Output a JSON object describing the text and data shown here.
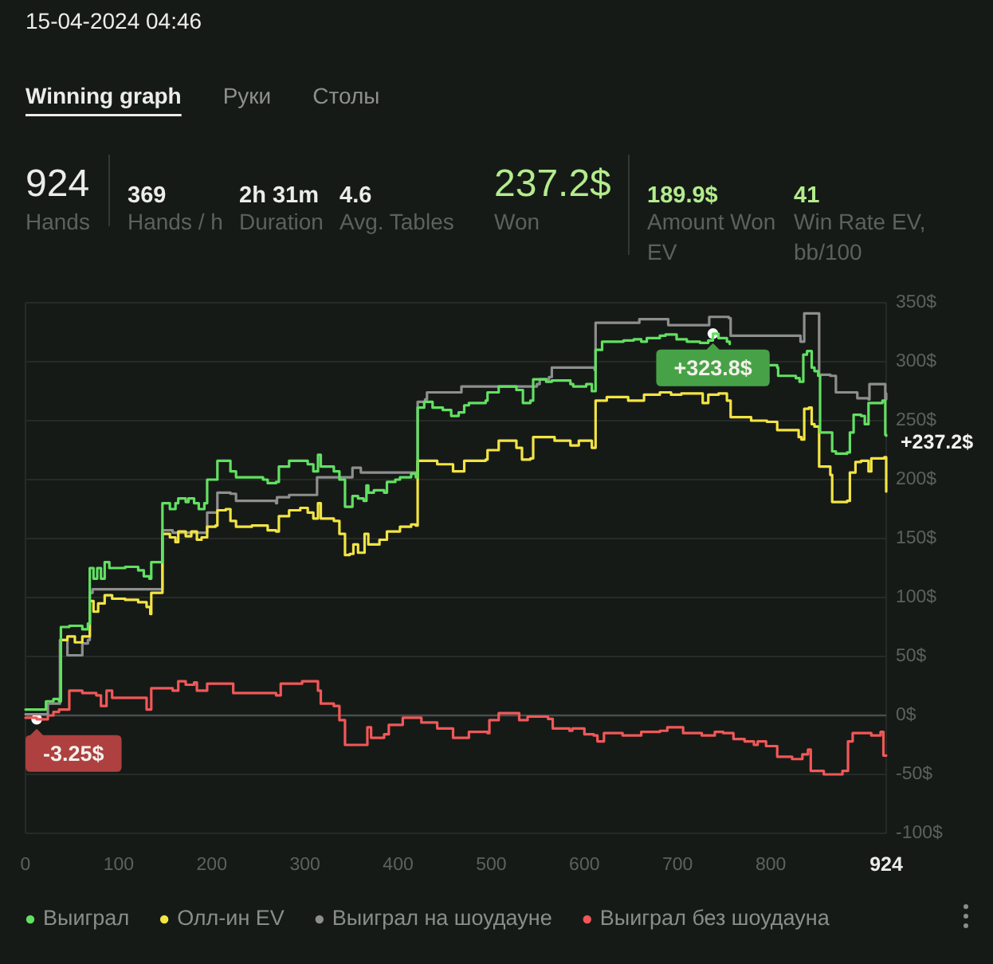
{
  "chart_data": {
    "type": "step",
    "title": "15-04-2024 04:46",
    "annotations": [
      "Winning graph",
      "Руки",
      "Столы",
      "924",
      "Hands",
      "369",
      "Hands / h",
      "2h 31m",
      "Duration",
      "4.6",
      "Avg. Tables",
      "237.2$",
      "Won",
      "189.9$",
      "Amount Won EV",
      "41",
      "Win Rate EV, bb/100",
      {
        "text": "+323.8$",
        "x": 738,
        "y": 323.8
      },
      {
        "text": "-3.25$",
        "x": 12,
        "y": -3.25
      },
      {
        "text": "+237.2$",
        "x": 924,
        "y": 237.2
      }
    ],
    "xlim": [
      0,
      924
    ],
    "xticks": [
      0,
      100,
      200,
      300,
      400,
      500,
      600,
      700,
      800,
      924
    ],
    "ylim": [
      -100,
      350
    ],
    "yticks": [
      {
        "value": -100,
        "label": "-100$"
      },
      {
        "value": -50,
        "label": "-50$"
      },
      {
        "value": 0,
        "label": "0$"
      },
      {
        "value": 50,
        "label": "50$"
      },
      {
        "value": 100,
        "label": "100$"
      },
      {
        "value": 150,
        "label": "150$"
      },
      {
        "value": 200,
        "label": "200$"
      },
      {
        "value": 250,
        "label": "250$"
      },
      {
        "value": 300,
        "label": "300$"
      },
      {
        "value": 350,
        "label": "350$"
      }
    ],
    "grid": "y",
    "legend": "bottom",
    "ref_lines": [
      {
        "axis": "y",
        "value": 0,
        "color": "#4a4e4b"
      }
    ],
    "series": [
      {
        "name": "Выиграл",
        "color": "#62e062",
        "x": [
          0,
          22,
          30,
          36,
          38,
          47,
          61,
          67,
          69,
          73,
          77,
          81,
          85,
          90,
          107,
          121,
          127,
          133,
          135,
          144,
          147,
          155,
          161,
          164,
          172,
          175,
          181,
          186,
          192,
          195,
          206,
          218,
          220,
          226,
          243,
          255,
          260,
          269,
          272,
          283,
          295,
          303,
          309,
          314,
          317,
          331,
          337,
          343,
          348,
          351,
          357,
          363,
          366,
          368,
          374,
          385,
          388,
          397,
          402,
          414,
          419,
          421,
          428,
          437,
          448,
          457,
          465,
          471,
          476,
          494,
          496,
          508,
          527,
          534,
          542,
          545,
          559,
          565,
          585,
          588,
          602,
          608,
          612,
          619,
          630,
          642,
          653,
          661,
          667,
          681,
          687,
          699,
          710,
          724,
          733,
          738,
          744,
          753,
          756,
          759,
          779,
          796,
          807,
          808,
          819,
          827,
          831,
          835,
          839,
          843,
          844,
          847,
          851,
          853,
          863,
          866,
          870,
          882,
          885,
          889,
          897,
          901,
          905,
          912,
          920,
          923,
          924
        ],
        "values": [
          5,
          12,
          14,
          12,
          75,
          76,
          73,
          78,
          125,
          116,
          125,
          116,
          130,
          125,
          126,
          123,
          118,
          116,
          130,
          130,
          180,
          175,
          180,
          184,
          181,
          184,
          180,
          175,
          180,
          200,
          216,
          216,
          207,
          202,
          202,
          200,
          197,
          198,
          211,
          216,
          216,
          213,
          207,
          221,
          211,
          207,
          200,
          177,
          177,
          186,
          184,
          182,
          195,
          189,
          191,
          189,
          198,
          200,
          202,
          205,
          202,
          261,
          266,
          261,
          259,
          254,
          257,
          263,
          265,
          267,
          274,
          279,
          276,
          265,
          267,
          285,
          283,
          284,
          281,
          279,
          281,
          275,
          310,
          317,
          317,
          318,
          319,
          317,
          320,
          322,
          323,
          319,
          317,
          316,
          318,
          323.8,
          320,
          317,
          315,
          null,
          null,
          297,
          295,
          288,
          288,
          286,
          283,
          306,
          309,
          309,
          295,
          292,
          288,
          240,
          240,
          224,
          222,
          223,
          240,
          255,
          254,
          247,
          265,
          265,
          267,
          238,
          237.2
        ]
      },
      {
        "name": "Олл-ин EV",
        "color": "#f2e444",
        "x": [
          39,
          45,
          53,
          61,
          69,
          73,
          78,
          85,
          93,
          107,
          121,
          130,
          134,
          135,
          144,
          147,
          155,
          161,
          164,
          172,
          178,
          184,
          189,
          195,
          204,
          206,
          215,
          220,
          226,
          243,
          260,
          269,
          272,
          283,
          295,
          303,
          309,
          314,
          317,
          331,
          337,
          343,
          348,
          352,
          357,
          364,
          368,
          380,
          388,
          397,
          402,
          414,
          419,
          421,
          431,
          442,
          459,
          471,
          476,
          494,
          496,
          508,
          527,
          533,
          542,
          545,
          562,
          568,
          585,
          594,
          608,
          612,
          624,
          647,
          664,
          681,
          693,
          704,
          727,
          733,
          744,
          753,
          757,
          779,
          796,
          807,
          830,
          833,
          836,
          841,
          844,
          847,
          852,
          864,
          866,
          882,
          885,
          891,
          897,
          905,
          908,
          922,
          924
        ],
        "values": [
          64,
          67,
          62,
          67,
          97,
          88,
          95,
          102,
          99,
          98,
          96,
          92,
          86,
          104,
          104,
          154,
          151,
          147,
          156,
          152,
          156,
          149,
          151,
          160,
          161,
          174,
          175,
          165,
          160,
          161,
          157,
          156,
          169,
          174,
          176,
          172,
          167,
          180,
          167,
          165,
          154,
          136,
          137,
          145,
          138,
          154,
          145,
          149,
          156,
          156,
          160,
          162,
          161,
          216,
          216,
          213,
          207,
          216,
          216,
          217,
          225,
          233,
          227,
          217,
          218,
          236,
          236,
          233,
          229,
          233,
          227,
          267,
          270,
          267,
          272,
          274,
          272,
          273,
          265,
          272,
          273,
          267,
          253,
          250,
          249,
          242,
          236,
          234,
          260,
          261,
          247,
          245,
          211,
          204,
          181,
          182,
          206,
          215,
          216,
          207,
          218,
          219,
          189.9
        ]
      },
      {
        "name": "Выиграл на шоудауне",
        "color": "#8e8e8e",
        "x": [
          0,
          24,
          36,
          37,
          44,
          45,
          60,
          61,
          67,
          69,
          72,
          144,
          147,
          158,
          192,
          195,
          206,
          220,
          226,
          269,
          270,
          283,
          312,
          313,
          348,
          351,
          360,
          419,
          421,
          429,
          431,
          465,
          468,
          494,
          549,
          552,
          562,
          565,
          611,
          612,
          656,
          659,
          687,
          690,
          733,
          734,
          755,
          757,
          830,
          832,
          836,
          849,
          852,
          864,
          870,
          887,
          893,
          905,
          906,
          922,
          923,
          924
        ],
        "values": [
          1,
          10,
          10,
          64,
          64,
          51,
          51,
          61,
          64,
          104,
          107,
          107,
          157,
          155,
          155,
          172,
          189,
          188,
          182,
          180,
          185,
          187,
          187,
          202,
          202,
          210,
          206,
          206,
          266,
          268,
          274,
          274,
          279,
          279,
          281,
          285,
          287,
          295,
          293,
          333,
          333,
          336,
          336,
          331,
          331,
          338,
          337,
          322,
          322,
          317,
          341,
          341,
          289,
          288,
          274,
          274,
          269,
          268,
          281,
          281,
          268,
          273
        ]
      },
      {
        "name": "Выиграл без шоудауна",
        "color": "#f05858",
        "x": [
          0,
          12,
          24,
          30,
          36,
          47,
          61,
          76,
          81,
          87,
          93,
          118,
          130,
          135,
          158,
          164,
          172,
          181,
          184,
          195,
          218,
          223,
          269,
          274,
          297,
          314,
          317,
          331,
          337,
          343,
          363,
          367,
          371,
          385,
          390,
          399,
          405,
          425,
          442,
          459,
          476,
          496,
          498,
          506,
          508,
          530,
          539,
          561,
          566,
          584,
          587,
          600,
          610,
          614,
          621,
          641,
          661,
          681,
          689,
          704,
          706,
          726,
          740,
          749,
          760,
          772,
          782,
          786,
          795,
          805,
          807,
          823,
          834,
          840,
          843,
          851,
          857,
          871,
          877,
          881,
          883,
          888,
          902,
          908,
          918,
          921,
          924
        ],
        "values": [
          -2,
          -3.25,
          0,
          3,
          5,
          21,
          19,
          17,
          8,
          21,
          15,
          15,
          5,
          23,
          21,
          29,
          26,
          28,
          21,
          27,
          27,
          19,
          17,
          27,
          29,
          21,
          10,
          8,
          -4,
          -25,
          -25,
          -10,
          -19,
          -16,
          -8,
          -8,
          -2,
          -6,
          -11,
          -19,
          -14,
          -15,
          -4,
          -4,
          2,
          -4,
          -1,
          -3,
          -11,
          -13,
          -11,
          -16,
          -17,
          -22,
          -15,
          -17,
          -14,
          -13,
          -10,
          -10,
          -15,
          -17,
          -14,
          -15,
          -20,
          -22,
          -25,
          -22,
          -26,
          -26,
          -35,
          -37,
          -33,
          -29,
          -47,
          -47,
          -50,
          -50,
          -47,
          -47,
          -22,
          -15,
          -15,
          -17,
          -14,
          -34,
          -34
        ]
      }
    ]
  }
}
